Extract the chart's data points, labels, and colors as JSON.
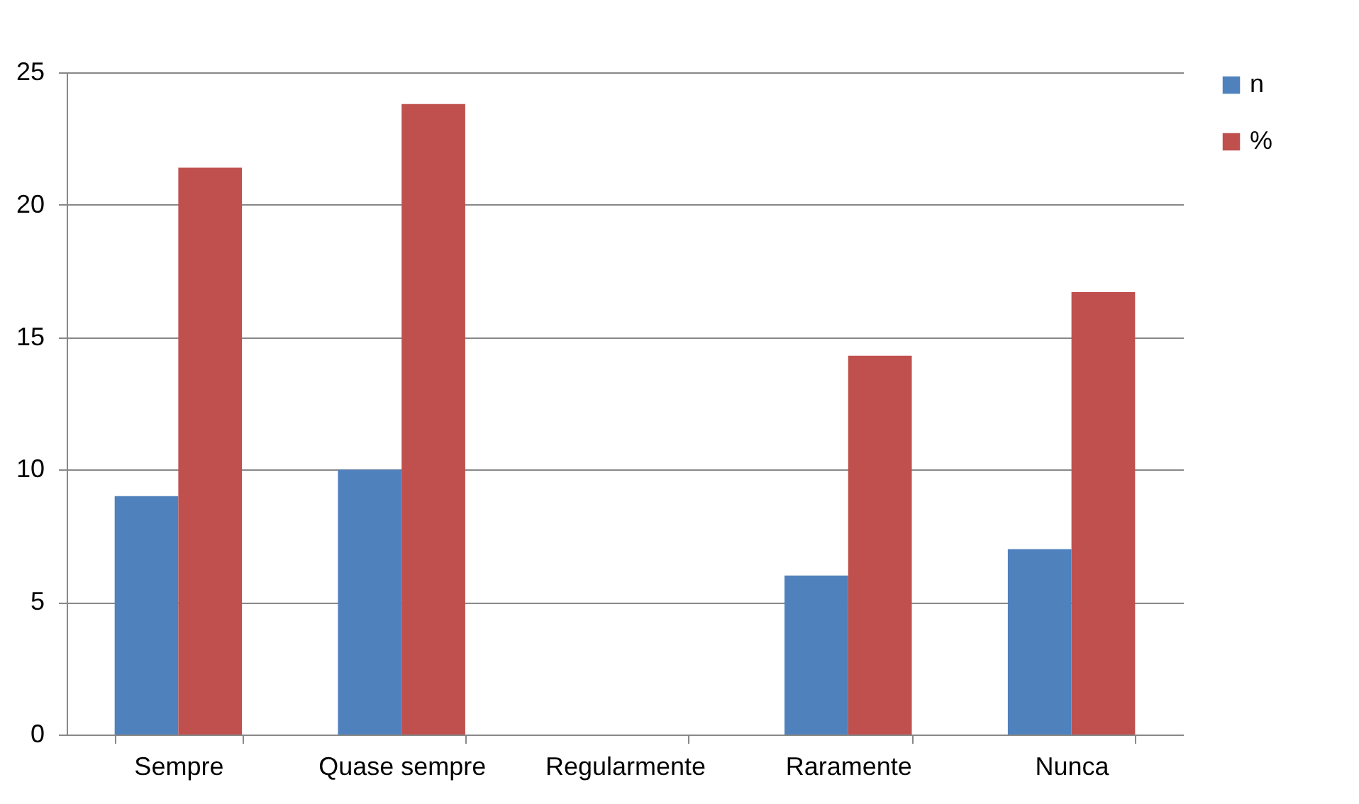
{
  "chart_data": {
    "type": "bar",
    "categories": [
      "Sempre",
      "Quase sempre",
      "Regularmente",
      "Raramente",
      "Nunca"
    ],
    "series": [
      {
        "name": "n",
        "color": "#4f81bd",
        "values": [
          9,
          10,
          0,
          6,
          7
        ]
      },
      {
        "name": "%",
        "color": "#c0504d",
        "values": [
          21.4,
          23.8,
          0,
          14.3,
          16.7
        ]
      }
    ],
    "ylim": [
      0,
      25
    ],
    "yticks": [
      0,
      5,
      10,
      15,
      20,
      25
    ],
    "grid": "y",
    "legend": "right"
  }
}
